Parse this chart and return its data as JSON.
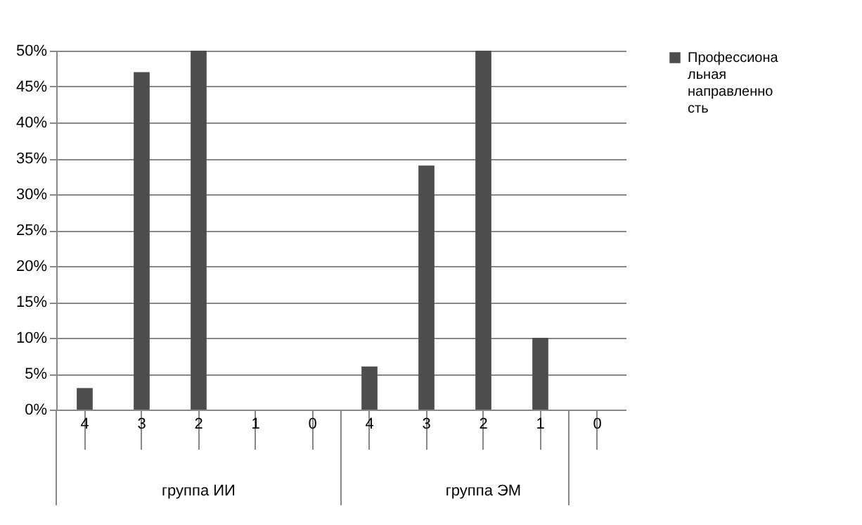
{
  "chart_data": {
    "type": "bar",
    "categories": [
      "4",
      "3",
      "2",
      "1",
      "0",
      "4",
      "3",
      "2",
      "1",
      "0"
    ],
    "series": [
      {
        "name": "Профессиональная направленность",
        "color": "#4d4d4d",
        "values": [
          3,
          47,
          50,
          0,
          0,
          6,
          34,
          50,
          10,
          0
        ]
      }
    ],
    "annotations": [
      "группа ИИ",
      "группа ЭМ"
    ],
    "ylim": [
      0,
      50
    ],
    "yticks": [
      {
        "value": 0,
        "label": "0%"
      },
      {
        "value": 5,
        "label": "5%"
      },
      {
        "value": 10,
        "label": "10%"
      },
      {
        "value": 15,
        "label": "15%"
      },
      {
        "value": 20,
        "label": "20%"
      },
      {
        "value": 25,
        "label": "25%"
      },
      {
        "value": 30,
        "label": "30%"
      },
      {
        "value": 35,
        "label": "35%"
      },
      {
        "value": 40,
        "label": "40%"
      },
      {
        "value": 45,
        "label": "45%"
      },
      {
        "value": 50,
        "label": "50%"
      }
    ],
    "grid": "y",
    "legend": "right"
  }
}
